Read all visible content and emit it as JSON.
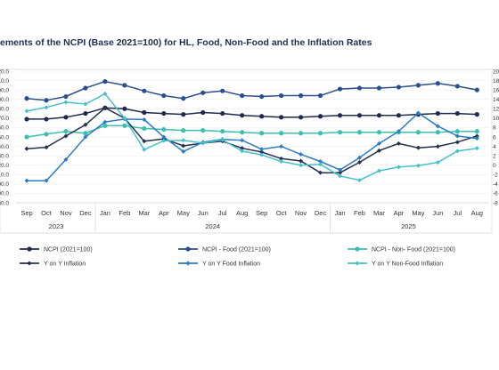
{
  "chart_data": {
    "type": "line",
    "title": "ements of the NCPI (Base 2021=100) for HL, Food, Non-Food and the Inflation Rates",
    "categories": [
      "Sep",
      "Oct",
      "Nov",
      "Dec",
      "Jan",
      "Feb",
      "Mar",
      "Apr",
      "May",
      "Jun",
      "Jul",
      "Aug",
      "Sep",
      "Oct",
      "Nov",
      "Dec",
      "Jan",
      "Feb",
      "Mar",
      "Apr",
      "May",
      "Jun",
      "Jul",
      "Aug"
    ],
    "years": [
      {
        "label": "2023",
        "start": 0,
        "end": 3
      },
      {
        "label": "2024",
        "start": 4,
        "end": 15
      },
      {
        "label": "2025",
        "start": 16,
        "end": 23
      }
    ],
    "left_axis": {
      "min": 80,
      "max": 220
    },
    "right_axis": {
      "min": -8,
      "max": 20
    },
    "series": [
      {
        "name": "NCPI - Food (2021=100)",
        "axis": "left",
        "color": "#2a4f8f",
        "marker": "circle",
        "values": [
          191,
          189,
          193,
          202,
          209,
          205,
          199,
          194,
          191,
          197,
          199,
          194,
          193,
          194,
          194,
          194,
          201,
          202,
          202,
          203,
          205,
          207,
          204,
          200
        ]
      },
      {
        "name": "NCPI (2021=100)",
        "axis": "left",
        "color": "#1f2b4d",
        "marker": "circle",
        "values": [
          169,
          169,
          171,
          175,
          181,
          180,
          176,
          175,
          174,
          176,
          175,
          173,
          172,
          171,
          171,
          172,
          173,
          173,
          173,
          173,
          174,
          175,
          175,
          174
        ]
      },
      {
        "name": "NCPI - Non- Food (2021=100)",
        "axis": "left",
        "color": "#3cbfae",
        "marker": "circle",
        "values": [
          150,
          153,
          156,
          154,
          162,
          162,
          159,
          158,
          157,
          157,
          156,
          155,
          154,
          154,
          154,
          154,
          155,
          155,
          155,
          155,
          155,
          155,
          156,
          156
        ]
      },
      {
        "name": "Y on Y  Inflation",
        "axis": "right",
        "color": "#25304f",
        "marker": "diamond",
        "values": [
          3.5,
          3.8,
          6.2,
          8.6,
          12.2,
          10.0,
          5.1,
          5.6,
          4.1,
          4.7,
          5.1,
          3.6,
          2.8,
          1.4,
          0.9,
          -1.6,
          -1.6,
          0.6,
          3.1,
          4.6,
          3.7,
          4.0,
          4.9,
          6.2
        ]
      },
      {
        "name": "Y on Y  Food Inflation",
        "axis": "right",
        "color": "#2b7bc6",
        "marker": "diamond",
        "values": [
          -3.3,
          -3.3,
          1.2,
          6.0,
          9.2,
          9.8,
          9.7,
          6.0,
          2.9,
          4.9,
          5.5,
          5.3,
          3.4,
          4.0,
          2.3,
          0.8,
          -1.0,
          1.6,
          4.6,
          7.2,
          11.1,
          8.3,
          6.2,
          5.7
        ]
      },
      {
        "name": "Y on Y  Non-Food Inflation",
        "axis": "right",
        "color": "#46c1cc",
        "marker": "diamond",
        "values": [
          11.5,
          12.3,
          13.4,
          13.0,
          15.2,
          10.0,
          3.3,
          5.2,
          5.3,
          4.7,
          5.4,
          3.0,
          2.2,
          0.8,
          0.0,
          0.2,
          -2.3,
          -3.2,
          -1.2,
          -0.4,
          -0.1,
          0.6,
          3.0,
          3.6
        ]
      }
    ],
    "legend": {
      "placement": "bottom",
      "entries": [
        "NCPI (2021=100)",
        "NCPI - Food (2021=100)",
        "NCPI - Non- Food (2021=100)",
        "Y on Y  Inflation",
        "Y on Y  Food Inflation",
        "Y on Y  Non-Food Inflation"
      ]
    }
  }
}
